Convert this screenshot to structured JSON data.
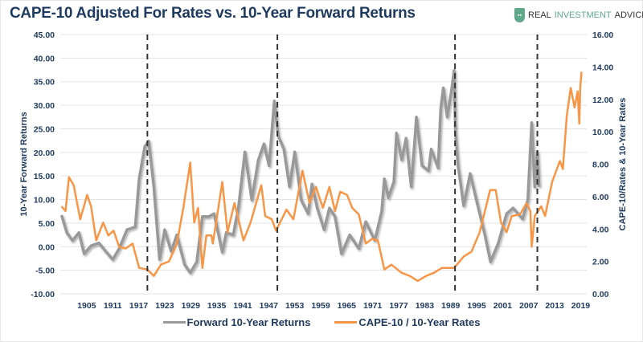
{
  "title": "CAPE-10 Adjusted For Rates vs. 10-Year Forward Returns",
  "logo": {
    "text_a": "REAL ",
    "text_b": "INVESTMENT",
    "text_c": " ADVICE"
  },
  "chart_data": {
    "type": "line",
    "title": "CAPE-10 Adjusted For Rates vs. 10-Year Forward Returns",
    "xlim": [
      1898.9,
      2020.4
    ],
    "x_ticks": [
      1905,
      1911,
      1917,
      1923,
      1929,
      1935,
      1941,
      1947,
      1953,
      1959,
      1965,
      1971,
      1977,
      1983,
      1989,
      1995,
      2001,
      2007,
      2013,
      2019
    ],
    "y_left": {
      "label": "10-Year Forward Returns",
      "lim": [
        -10,
        45
      ],
      "ticks": [
        "45.00",
        "40.00",
        "35.00",
        "30.00",
        "25.00",
        "20.00",
        "15.00",
        "10.00",
        "5.00",
        "0.00",
        "-5.00",
        "-10.00"
      ]
    },
    "y_right": {
      "label": "CAPE-10/Rates & 10-Year Rates",
      "lim": [
        0,
        16
      ],
      "ticks": [
        "16.00",
        "14.00",
        "12.00",
        "10.00",
        "8.00",
        "6.00",
        "4.00",
        "2.00",
        "0.00"
      ]
    },
    "grid": true,
    "legend_position": "bottom",
    "vertical_markers": [
      1919,
      1949,
      1990,
      2009
    ],
    "series": [
      {
        "name": "Forward 10-Year Returns",
        "axis": "left",
        "color": "#999999",
        "x": [
          1899.2,
          1900.4,
          1901.7,
          1903.2,
          1904.4,
          1906,
          1907.8,
          1909.4,
          1911,
          1912.5,
          1914.3,
          1916.2,
          1917.1,
          1918.4,
          1919.3,
          1920.5,
          1921.8,
          1923,
          1924.5,
          1925.8,
          1927.6,
          1928.9,
          1930.4,
          1931.7,
          1933.2,
          1934.4,
          1936.3,
          1937.2,
          1938.8,
          1940,
          1941.5,
          1943.1,
          1944.6,
          1945.9,
          1947.1,
          1948.3,
          1949.2,
          1950.5,
          1951.8,
          1953,
          1954.5,
          1956.1,
          1957,
          1958.2,
          1959.8,
          1961,
          1962.3,
          1963.8,
          1965.7,
          1967.8,
          1969.4,
          1971.5,
          1973.1,
          1973.7,
          1974.6,
          1975.9,
          1976.5,
          1977.7,
          1978.7,
          1979.9,
          1981.1,
          1982.4,
          1983.9,
          1984.5,
          1986.1,
          1986.7,
          1987.3,
          1988.2,
          1989.2,
          1989.8,
          1990.1,
          1990.7,
          1992,
          1993.5,
          1995.1,
          1996.9,
          1998.2,
          2000,
          2001.9,
          2003.4,
          2005.6,
          2006.8,
          2007.7,
          2008.4,
          2009,
          2009.4
        ],
        "y": [
          6.7,
          3.0,
          1.3,
          3.0,
          -1.5,
          0.2,
          0.8,
          -1,
          -2.7,
          -0.4,
          3.6,
          4.2,
          14.4,
          21.2,
          22.4,
          12.7,
          -2.7,
          3.6,
          -1,
          2.5,
          -3.8,
          -5.5,
          -3.2,
          6.4,
          6.4,
          7,
          -1.2,
          3,
          2.5,
          8.2,
          20.1,
          9.9,
          18.4,
          21.8,
          17.2,
          30.9,
          23.5,
          20.7,
          12.7,
          20.1,
          9.9,
          7,
          13.3,
          8.2,
          3.6,
          8.2,
          6.4,
          -1.5,
          2.5,
          -0.4,
          5.3,
          1.3,
          7.6,
          14.4,
          10.4,
          13.8,
          24.1,
          18.4,
          23,
          12.7,
          27.5,
          17.2,
          16.1,
          20.7,
          16.7,
          29.2,
          33.7,
          27.5,
          33.2,
          37.4,
          24.1,
          17.2,
          8.7,
          15.5,
          9.3,
          2.5,
          -3.2,
          0.8,
          7,
          8.2,
          5.9,
          9.9,
          26.3,
          12.7,
          20.1,
          12.7
        ]
      },
      {
        "name": "CAPE-10 / 10-Year Rates",
        "axis": "right",
        "color": "#F79646",
        "x": [
          1899.2,
          1900.1,
          1900.9,
          1902,
          1903.5,
          1905.1,
          1906,
          1907.2,
          1908.8,
          1910,
          1911.2,
          1912.5,
          1914,
          1915.6,
          1917.1,
          1919,
          1920.5,
          1922.1,
          1924,
          1925.8,
          1927.3,
          1928.9,
          1929.8,
          1930.7,
          1931.7,
          1932.6,
          1933.8,
          1934.1,
          1936.3,
          1937.5,
          1939.1,
          1941.2,
          1942.8,
          1945.3,
          1946.2,
          1947.7,
          1948.7,
          1951.1,
          1952.7,
          1954.8,
          1956.4,
          1957.9,
          1959.5,
          1961,
          1962.3,
          1963.5,
          1965.1,
          1966.3,
          1967.8,
          1969.4,
          1970.9,
          1972.2,
          1973.7,
          1975.3,
          1977.7,
          1979.6,
          1981.4,
          1983.3,
          1985.1,
          1987,
          1989.8,
          1992,
          1993.8,
          1995.7,
          1996.9,
          1998.1,
          1999.4,
          2000.6,
          2001.9,
          2003.1,
          2005,
          2006.5,
          2007.4,
          2007.7,
          2008.4,
          2009.9,
          2010.8,
          2012.4,
          2014.2,
          2014.9,
          2015.8,
          2016.7,
          2017.6,
          2018.3,
          2018.7,
          2018.9,
          2019.2
        ],
        "y": [
          5.4,
          5.1,
          7.2,
          6.7,
          4.6,
          6.1,
          5.4,
          3.3,
          4.4,
          3.6,
          3.9,
          2.9,
          2.8,
          3.1,
          1.6,
          1.5,
          1.1,
          1.8,
          2.0,
          3.1,
          5.3,
          8.1,
          4.4,
          5.3,
          1.6,
          3.6,
          3.6,
          3.1,
          6.9,
          3.8,
          5.6,
          3.3,
          4.4,
          6.7,
          4.8,
          4.6,
          3.9,
          5.2,
          4.6,
          7.6,
          5.6,
          6.6,
          5.3,
          6.6,
          5.1,
          6.3,
          6.1,
          5.3,
          4.9,
          3.1,
          3.4,
          3.3,
          1.5,
          1.8,
          1.3,
          1.1,
          0.8,
          1.1,
          1.3,
          1.6,
          1.6,
          2.3,
          2.6,
          3.8,
          5.1,
          6.4,
          6.4,
          4.4,
          3.8,
          4.8,
          4.9,
          5.6,
          5.1,
          2.9,
          4.8,
          5.4,
          4.8,
          6.9,
          8.2,
          7.7,
          11,
          12.7,
          11.5,
          12.5,
          10.5,
          12.7,
          13.7
        ]
      }
    ]
  },
  "legend": [
    "Forward 10-Year Returns",
    "CAPE-10 / 10-Year Rates"
  ]
}
